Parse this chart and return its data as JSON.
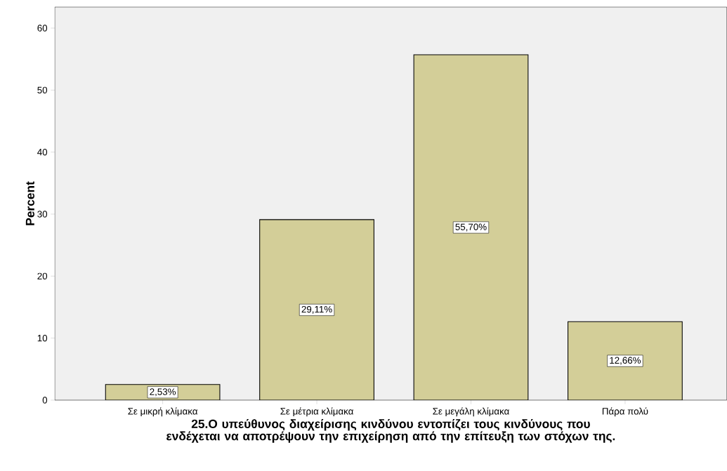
{
  "chart_data": {
    "type": "bar",
    "xlabel": "**25.Ο υπεύθυνος διαχείρισης κινδύνου εντοπίζει τους κινδύνους που ενδέχεται να αποτρέψουν την επιχείρηση από την επίτευξη των στόχων της.**",
    "ylabel": "**Percent**",
    "categories": [
      "Σε μικρή κλίμακα",
      "Σε μέτρια κλίμακα",
      "Σε μεγάλη κλίμακα",
      "Πάρα πολύ"
    ],
    "values": [
      2.53,
      29.11,
      55.7,
      12.66
    ],
    "value_labels": [
      "2,53%",
      "29,11%",
      "55,70%",
      "12,66%"
    ],
    "color": "#d3ce98",
    "ylim": [
      0,
      63.4
    ],
    "yticks": [
      0,
      10,
      20,
      30,
      40,
      50,
      60
    ]
  }
}
